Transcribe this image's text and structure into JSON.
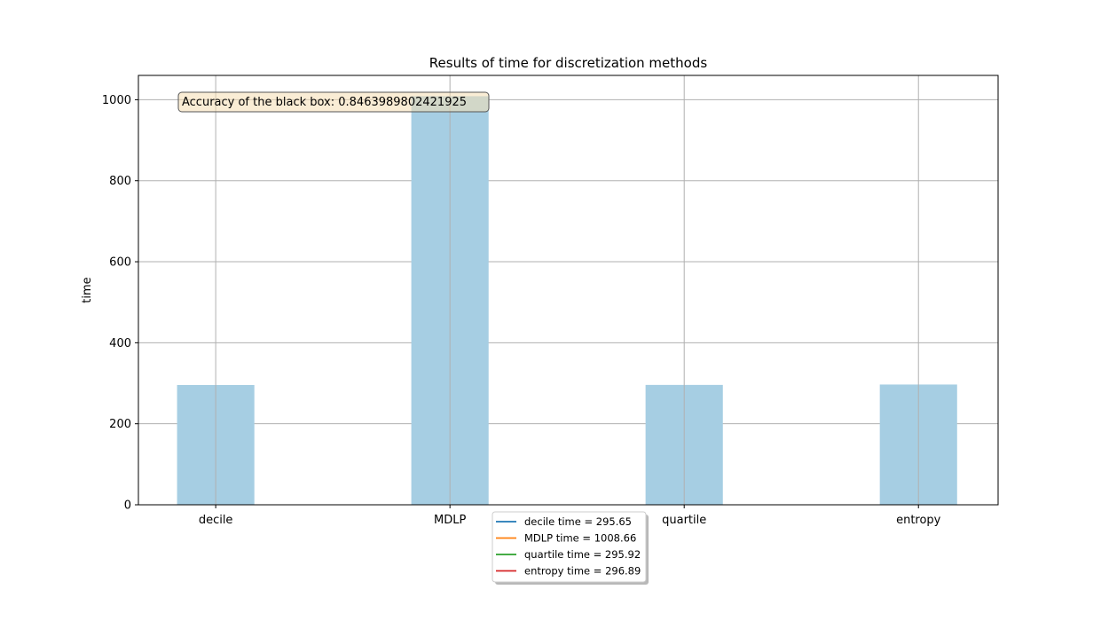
{
  "chart_data": {
    "type": "bar",
    "title": "Results of time for discretization methods",
    "xlabel": "",
    "ylabel": "time",
    "categories": [
      "decile",
      "MDLP",
      "quartile",
      "entropy"
    ],
    "values": [
      295.65,
      1008.66,
      295.92,
      296.89
    ],
    "ylim": [
      0,
      1060
    ],
    "yticks": [
      0,
      200,
      400,
      600,
      800,
      1000
    ],
    "grid": true,
    "bar_color": "#a6cee3",
    "annotation": "Accuracy of the black box: 0.8463989802421925",
    "legend": {
      "placement": "bottom-center",
      "entries": [
        {
          "label": "decile time = 295.65",
          "color": "#1f77b4"
        },
        {
          "label": "MDLP time = 1008.66",
          "color": "#ff7f0e"
        },
        {
          "label": "quartile time = 295.92",
          "color": "#2ca02c"
        },
        {
          "label": "entropy time = 296.89",
          "color": "#d62728"
        }
      ]
    }
  }
}
